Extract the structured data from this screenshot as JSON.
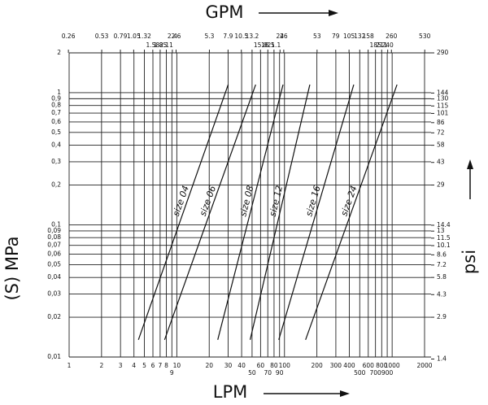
{
  "chart_data": {
    "type": "line",
    "x_label": "LPM",
    "x2_label": "GPM",
    "y_label": "(S) MPa",
    "y2_label": "psi",
    "log_x": true,
    "log_y": true,
    "grid": true,
    "xlim": [
      1,
      2000
    ],
    "xticks": [
      1,
      2,
      3,
      4,
      5,
      6,
      7,
      8,
      9,
      10,
      20,
      30,
      40,
      50,
      60,
      70,
      80,
      90,
      100,
      200,
      300,
      400,
      500,
      600,
      700,
      800,
      900,
      1000,
      2000
    ],
    "x2lim": [
      0.264,
      528
    ],
    "x2ticks": [
      0.26,
      0.53,
      0.79,
      1.05,
      1.32,
      1.58,
      1.85,
      2.11,
      2.4,
      2.6,
      5.3,
      7.9,
      10.5,
      13.2,
      15.8,
      18.5,
      21.1,
      24,
      26,
      53,
      79,
      105,
      132,
      158,
      185,
      211,
      240,
      260,
      530
    ],
    "ylim": [
      0.01,
      2
    ],
    "yticks": [
      {
        "value": 0.01,
        "label": "0,01"
      },
      {
        "value": 0.02,
        "label": "0,02"
      },
      {
        "value": 0.03,
        "label": "0,03"
      },
      {
        "value": 0.04,
        "label": "0,04"
      },
      {
        "value": 0.05,
        "label": "0,05"
      },
      {
        "value": 0.06,
        "label": "0,06"
      },
      {
        "value": 0.07,
        "label": "0,07"
      },
      {
        "value": 0.08,
        "label": "0,08"
      },
      {
        "value": 0.09,
        "label": "0,09"
      },
      {
        "value": 0.1,
        "label": "0,1"
      },
      {
        "value": 0.2,
        "label": "0,2"
      },
      {
        "value": 0.3,
        "label": "0,3"
      },
      {
        "value": 0.4,
        "label": "0,4"
      },
      {
        "value": 0.5,
        "label": "0,5"
      },
      {
        "value": 0.6,
        "label": "0,6"
      },
      {
        "value": 0.7,
        "label": "0,7"
      },
      {
        "value": 0.8,
        "label": "0,8"
      },
      {
        "value": 0.9,
        "label": "0,9"
      },
      1,
      2
    ],
    "y2lim": [
      1.45,
      290
    ],
    "y2ticks": [
      1.4,
      2.9,
      4.3,
      5.8,
      7.2,
      8.6,
      10.1,
      11.5,
      13,
      14.4,
      29,
      43,
      58,
      72,
      86,
      101,
      115,
      130,
      144,
      290
    ],
    "series": [
      {
        "name": "size 04",
        "color": "#111111",
        "x": [
          4.4,
          30
        ],
        "values": [
          0.0135,
          1.15
        ]
      },
      {
        "name": "size 06",
        "color": "#111111",
        "x": [
          7.7,
          54
        ],
        "values": [
          0.0135,
          1.15
        ]
      },
      {
        "name": "size 08",
        "color": "#111111",
        "x": [
          24,
          97
        ],
        "values": [
          0.0135,
          1.15
        ]
      },
      {
        "name": "size 12",
        "color": "#111111",
        "x": [
          48,
          172
        ],
        "values": [
          0.0135,
          1.15
        ]
      },
      {
        "name": "size 16",
        "color": "#111111",
        "x": [
          88.5,
          440
        ],
        "values": [
          0.0135,
          1.15
        ]
      },
      {
        "name": "size 24",
        "color": "#111111",
        "x": [
          157,
          1110
        ],
        "values": [
          0.0135,
          1.15
        ]
      }
    ]
  }
}
